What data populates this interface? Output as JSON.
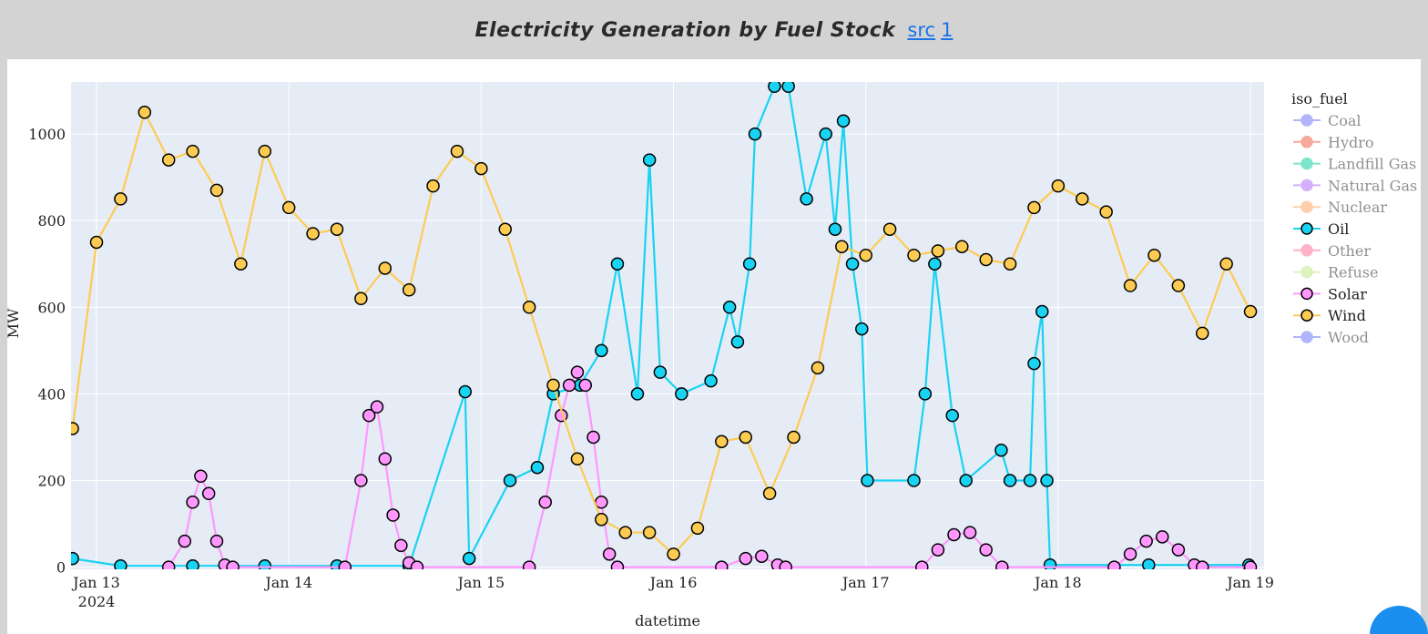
{
  "chart_data": {
    "type": "scatter",
    "title": "Electricity Generation by Fuel Stock",
    "title_links": [
      "src",
      "1"
    ],
    "x_label": "datetime",
    "y_label": "MW",
    "legend_title": "iso_fuel",
    "xlim": [
      "2024-01-12 20:49",
      "2024-01-19 01:42"
    ],
    "xticks": [
      {
        "value": "2024-01-13 00:00",
        "label": "Jan 13"
      },
      {
        "value": "2024-01-14 00:00",
        "label": "Jan 14"
      },
      {
        "value": "2024-01-15 00:00",
        "label": "Jan 15"
      },
      {
        "value": "2024-01-16 00:00",
        "label": "Jan 16"
      },
      {
        "value": "2024-01-17 00:00",
        "label": "Jan 17"
      },
      {
        "value": "2024-01-18 00:00",
        "label": "Jan 18"
      },
      {
        "value": "2024-01-19 00:00",
        "label": "Jan 19"
      }
    ],
    "xtick_year": "2024",
    "ylim": [
      -5,
      1120
    ],
    "yticks": [
      0,
      200,
      400,
      600,
      800,
      1000
    ],
    "grid": true,
    "series": [
      {
        "name": "Coal",
        "color": "#636efa",
        "visible": "legendonly"
      },
      {
        "name": "Hydro",
        "color": "#EF553B",
        "visible": "legendonly"
      },
      {
        "name": "Landfill Gas",
        "color": "#00cc96",
        "visible": "legendonly"
      },
      {
        "name": "Natural Gas",
        "color": "#ab63fa",
        "visible": "legendonly"
      },
      {
        "name": "Nuclear",
        "color": "#FFA15A",
        "visible": "legendonly"
      },
      {
        "name": "Oil",
        "color": "#19d3f3",
        "x": [
          "2024-01-12 21:00",
          "2024-01-13 03:00",
          "2024-01-13 12:00",
          "2024-01-13 21:00",
          "2024-01-14 06:00",
          "2024-01-14 15:00",
          "2024-01-14 22:00",
          "2024-01-14 22:30",
          "2024-01-15 03:36",
          "2024-01-15 07:00",
          "2024-01-15 09:00",
          "2024-01-15 12:20",
          "2024-01-15 15:00",
          "2024-01-15 17:00",
          "2024-01-15 19:30",
          "2024-01-15 21:00",
          "2024-01-15 22:20",
          "2024-01-16 01:00",
          "2024-01-16 04:40",
          "2024-01-16 07:00",
          "2024-01-16 08:00",
          "2024-01-16 09:30",
          "2024-01-16 10:10",
          "2024-01-16 12:36",
          "2024-01-16 14:20",
          "2024-01-16 16:36",
          "2024-01-16 19:00",
          "2024-01-16 20:10",
          "2024-01-16 21:12",
          "2024-01-16 22:20",
          "2024-01-16 23:30",
          "2024-01-17 00:12",
          "2024-01-17 06:00",
          "2024-01-17 07:24",
          "2024-01-17 08:36",
          "2024-01-17 10:48",
          "2024-01-17 12:30",
          "2024-01-17 16:54",
          "2024-01-17 18:00",
          "2024-01-17 20:30",
          "2024-01-17 21:00",
          "2024-01-17 22:00",
          "2024-01-17 22:36",
          "2024-01-17 23:00",
          "2024-01-18 11:18",
          "2024-01-18 23:48"
        ],
        "values": [
          20,
          3,
          3,
          3,
          3,
          3,
          405,
          20,
          200,
          230,
          400,
          420,
          500,
          700,
          400,
          940,
          450,
          400,
          430,
          600,
          520,
          700,
          1000,
          1110,
          1110,
          850,
          1000,
          780,
          1030,
          700,
          550,
          200,
          200,
          400,
          700,
          350,
          200,
          270,
          200,
          200,
          470,
          590,
          200,
          5,
          5,
          5
        ]
      },
      {
        "name": "Other",
        "color": "#FF6692",
        "visible": "legendonly"
      },
      {
        "name": "Refuse",
        "color": "#B6E880",
        "visible": "legendonly"
      },
      {
        "name": "Solar",
        "color": "#FF97FF",
        "x": [
          "2024-01-13 09:00",
          "2024-01-13 11:00",
          "2024-01-13 12:00",
          "2024-01-13 13:00",
          "2024-01-13 14:00",
          "2024-01-13 15:00",
          "2024-01-13 16:00",
          "2024-01-13 17:00",
          "2024-01-14 07:00",
          "2024-01-14 09:00",
          "2024-01-14 10:00",
          "2024-01-14 11:00",
          "2024-01-14 12:00",
          "2024-01-14 13:00",
          "2024-01-14 14:00",
          "2024-01-14 15:00",
          "2024-01-14 16:00",
          "2024-01-15 06:00",
          "2024-01-15 08:00",
          "2024-01-15 10:00",
          "2024-01-15 11:00",
          "2024-01-15 12:00",
          "2024-01-15 13:00",
          "2024-01-15 14:00",
          "2024-01-15 15:00",
          "2024-01-15 16:00",
          "2024-01-15 17:00",
          "2024-01-16 06:00",
          "2024-01-16 09:00",
          "2024-01-16 11:00",
          "2024-01-16 13:00",
          "2024-01-16 14:00",
          "2024-01-17 07:00",
          "2024-01-17 09:00",
          "2024-01-17 11:00",
          "2024-01-17 13:00",
          "2024-01-17 15:00",
          "2024-01-17 17:00",
          "2024-01-18 07:00",
          "2024-01-18 09:00",
          "2024-01-18 11:00",
          "2024-01-18 13:00",
          "2024-01-18 15:00",
          "2024-01-18 17:00",
          "2024-01-18 18:00",
          "2024-01-19 00:00"
        ],
        "values": [
          0,
          60,
          150,
          210,
          170,
          60,
          5,
          0,
          0,
          200,
          350,
          370,
          250,
          120,
          50,
          10,
          0,
          0,
          150,
          350,
          420,
          450,
          420,
          300,
          150,
          30,
          0,
          0,
          20,
          25,
          5,
          0,
          0,
          40,
          75,
          80,
          40,
          0,
          0,
          30,
          60,
          70,
          40,
          5,
          0,
          0
        ]
      },
      {
        "name": "Wind",
        "color": "#FECB52",
        "x": [
          "2024-01-12 21:00",
          "2024-01-13 00:00",
          "2024-01-13 03:00",
          "2024-01-13 06:00",
          "2024-01-13 09:00",
          "2024-01-13 12:00",
          "2024-01-13 15:00",
          "2024-01-13 18:00",
          "2024-01-13 21:00",
          "2024-01-14 00:00",
          "2024-01-14 03:00",
          "2024-01-14 06:00",
          "2024-01-14 09:00",
          "2024-01-14 12:00",
          "2024-01-14 15:00",
          "2024-01-14 18:00",
          "2024-01-14 21:00",
          "2024-01-15 00:00",
          "2024-01-15 03:00",
          "2024-01-15 06:00",
          "2024-01-15 09:00",
          "2024-01-15 12:00",
          "2024-01-15 15:00",
          "2024-01-15 18:00",
          "2024-01-15 21:00",
          "2024-01-16 00:00",
          "2024-01-16 03:00",
          "2024-01-16 06:00",
          "2024-01-16 09:00",
          "2024-01-16 12:00",
          "2024-01-16 15:00",
          "2024-01-16 18:00",
          "2024-01-16 21:00",
          "2024-01-17 00:00",
          "2024-01-17 03:00",
          "2024-01-17 06:00",
          "2024-01-17 09:00",
          "2024-01-17 12:00",
          "2024-01-17 15:00",
          "2024-01-17 18:00",
          "2024-01-17 21:00",
          "2024-01-18 00:00",
          "2024-01-18 03:00",
          "2024-01-18 06:00",
          "2024-01-18 09:00",
          "2024-01-18 12:00",
          "2024-01-18 15:00",
          "2024-01-18 18:00",
          "2024-01-18 21:00",
          "2024-01-19 00:00"
        ],
        "values": [
          320,
          750,
          850,
          1050,
          940,
          960,
          870,
          700,
          960,
          830,
          770,
          780,
          620,
          690,
          640,
          880,
          960,
          920,
          780,
          600,
          420,
          250,
          110,
          80,
          80,
          30,
          90,
          290,
          300,
          170,
          300,
          460,
          740,
          720,
          780,
          720,
          730,
          740,
          710,
          700,
          830,
          880,
          850,
          820,
          650,
          720,
          650,
          540,
          700,
          590
        ]
      },
      {
        "name": "Wood",
        "color": "#636efa",
        "visible": "legendonly"
      }
    ]
  }
}
